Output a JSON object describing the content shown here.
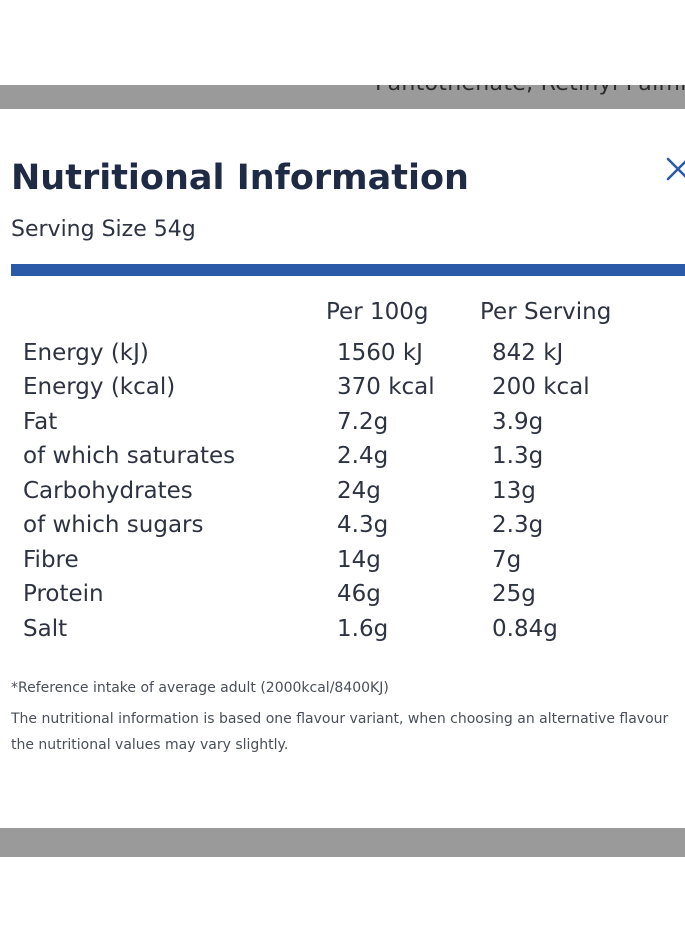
{
  "background_text": "Pantothenate, Retinyl Palmi",
  "modal": {
    "title": "Nutritional Information",
    "serving_size": "Serving Size 54g",
    "close_icon": "close-icon",
    "accent_color": "#2a5aa8",
    "columns": {
      "per_100g": "Per 100g",
      "per_serving": "Per Serving"
    },
    "rows": [
      {
        "label": "Energy (kJ)",
        "per_100g": "1560 kJ",
        "per_serving": "842 kJ"
      },
      {
        "label": "Energy (kcal)",
        "per_100g": "370 kcal",
        "per_serving": "200 kcal"
      },
      {
        "label": "Fat",
        "per_100g": "7.2g",
        "per_serving": "3.9g"
      },
      {
        "label": "of which saturates",
        "per_100g": "2.4g",
        "per_serving": "1.3g"
      },
      {
        "label": "Carbohydrates",
        "per_100g": "24g",
        "per_serving": "13g"
      },
      {
        "label": "of which sugars",
        "per_100g": "4.3g",
        "per_serving": "2.3g"
      },
      {
        "label": "Fibre",
        "per_100g": "14g",
        "per_serving": "7g"
      },
      {
        "label": "Protein",
        "per_100g": "46g",
        "per_serving": "25g"
      },
      {
        "label": "Salt",
        "per_100g": "1.6g",
        "per_serving": "0.84g"
      }
    ],
    "footnote": "*Reference intake of average adult (2000kcal/8400KJ)",
    "disclaimer": "The nutritional information is based one flavour variant, when choosing an alternative flavour the nutritional values may vary slightly."
  }
}
